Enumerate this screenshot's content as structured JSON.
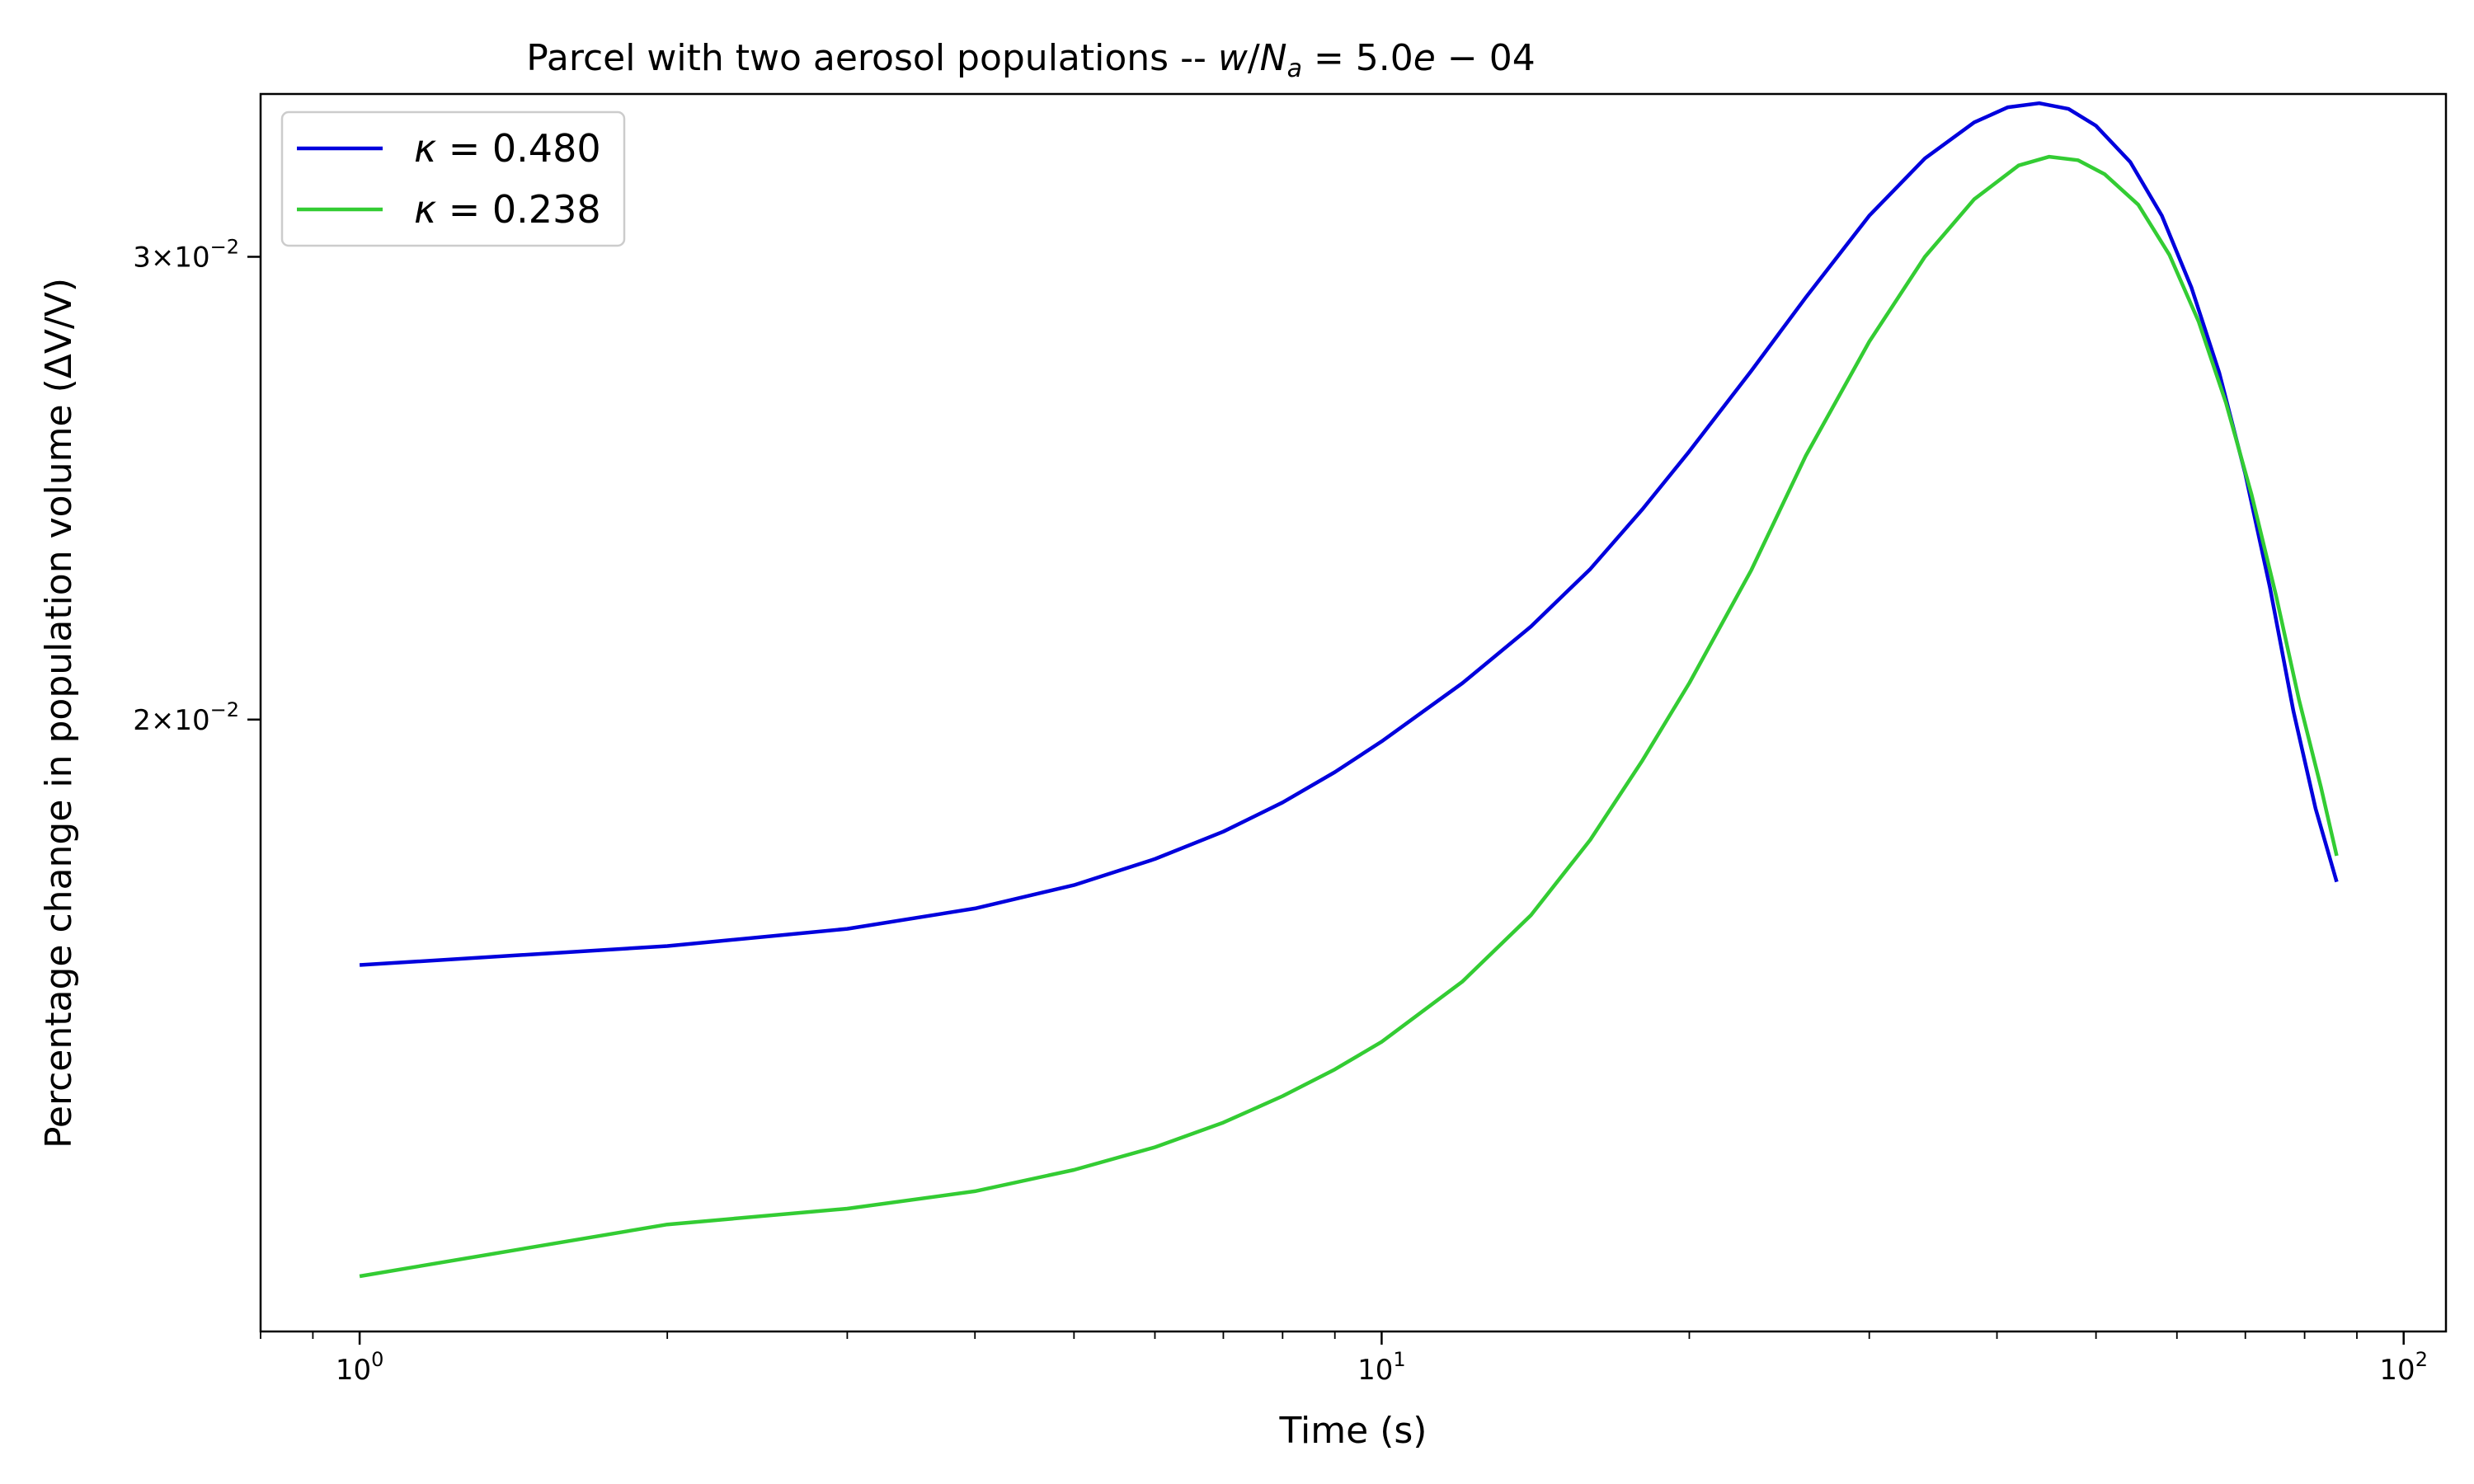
{
  "chart_data": {
    "type": "line",
    "title": "Parcel with two aerosol populations -- w/N_a = 5.0e-04",
    "title_parts": {
      "prefix": "Parcel with two aerosol populations -- ",
      "w": "w",
      "slash": "/",
      "N": "N",
      "a": "a",
      "equals": " = ",
      "value": "5.0",
      "e": "e",
      "minus": " − ",
      "exponent": "04"
    },
    "xlabel": "Time (s)",
    "ylabel": "Percentage change in population volume (ΔV/V)",
    "x_scale": "log",
    "y_scale": "log",
    "xlim": [
      0.8,
      110
    ],
    "ylim": [
      0.0117,
      0.0346
    ],
    "x_ticks": [
      {
        "value": 1,
        "base": "10",
        "exp": "0"
      },
      {
        "value": 10,
        "base": "10",
        "exp": "1"
      },
      {
        "value": 100,
        "base": "10",
        "exp": "2"
      }
    ],
    "y_ticks": [
      {
        "value": 0.02,
        "mant": "2",
        "times": "×",
        "base": "10",
        "exp": "−2"
      },
      {
        "value": 0.03,
        "mant": "3",
        "times": "×",
        "base": "10",
        "exp": "−2"
      }
    ],
    "legend": "top-left",
    "grid": false,
    "series": [
      {
        "name": "κ = 0.480",
        "symbol": "κ",
        "value": "0.480",
        "color": "#0000dd",
        "points": [
          [
            1,
            0.01613
          ],
          [
            2,
            0.0164
          ],
          [
            3,
            0.01665
          ],
          [
            4,
            0.01695
          ],
          [
            5,
            0.0173
          ],
          [
            6,
            0.0177
          ],
          [
            7,
            0.01813
          ],
          [
            8,
            0.0186
          ],
          [
            9,
            0.0191
          ],
          [
            10,
            0.01962
          ],
          [
            12,
            0.02065
          ],
          [
            14,
            0.0217
          ],
          [
            16,
            0.02282
          ],
          [
            18,
            0.02405
          ],
          [
            20,
            0.0253
          ],
          [
            23,
            0.02715
          ],
          [
            26,
            0.02895
          ],
          [
            30,
            0.0311
          ],
          [
            34,
            0.0327
          ],
          [
            38,
            0.03375
          ],
          [
            41,
            0.0342
          ],
          [
            44,
            0.03432
          ],
          [
            47,
            0.03415
          ],
          [
            50,
            0.03365
          ],
          [
            54,
            0.0326
          ],
          [
            58,
            0.0311
          ],
          [
            62,
            0.0292
          ],
          [
            66,
            0.0271
          ],
          [
            70,
            0.0248
          ],
          [
            74,
            0.02245
          ],
          [
            78,
            0.02015
          ],
          [
            82,
            0.0185
          ],
          [
            86,
            0.01735
          ]
        ]
      },
      {
        "name": "κ = 0.238",
        "symbol": "κ",
        "value": "0.238",
        "color": "#33cc33",
        "points": [
          [
            1,
            0.01228
          ],
          [
            2,
            0.01285
          ],
          [
            3,
            0.01303
          ],
          [
            4,
            0.01323
          ],
          [
            5,
            0.01348
          ],
          [
            6,
            0.01375
          ],
          [
            7,
            0.01405
          ],
          [
            8,
            0.01438
          ],
          [
            9,
            0.01472
          ],
          [
            10,
            0.01508
          ],
          [
            12,
            0.0159
          ],
          [
            14,
            0.01685
          ],
          [
            16,
            0.018
          ],
          [
            18,
            0.0193
          ],
          [
            20,
            0.02065
          ],
          [
            23,
            0.0228
          ],
          [
            26,
            0.0252
          ],
          [
            30,
            0.02785
          ],
          [
            34,
            0.03
          ],
          [
            38,
            0.03155
          ],
          [
            42,
            0.0325
          ],
          [
            45,
            0.03275
          ],
          [
            48,
            0.03265
          ],
          [
            51,
            0.03225
          ],
          [
            55,
            0.0314
          ],
          [
            59,
            0.03005
          ],
          [
            63,
            0.02835
          ],
          [
            67,
            0.0264
          ],
          [
            71,
            0.02435
          ],
          [
            75,
            0.0223
          ],
          [
            79,
            0.02035
          ],
          [
            83,
            0.01885
          ],
          [
            86,
            0.01775
          ]
        ]
      }
    ]
  }
}
